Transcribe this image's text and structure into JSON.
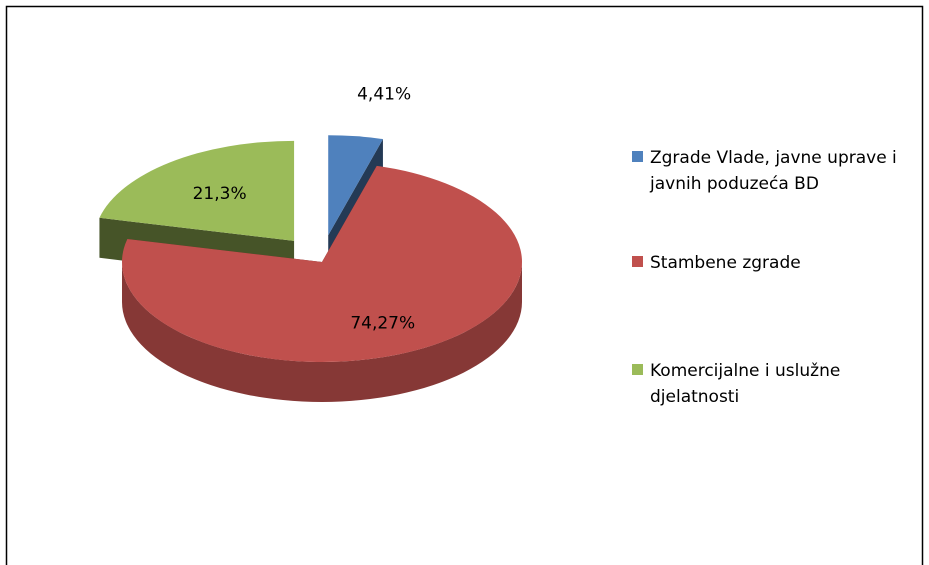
{
  "chart_data": {
    "type": "pie",
    "categories": [
      "Zgrade Vlade, javne uprave i javnih poduzeća BD",
      "Stambene zgrade",
      "Komercijalne i uslužne djelatnosti"
    ],
    "values": [
      4.41,
      74.27,
      21.3
    ],
    "value_labels": [
      "4,41%",
      "74,27%",
      "21,3%"
    ],
    "colors": [
      "#4f81bd",
      "#c0504d",
      "#9bbb59"
    ],
    "legend": "right"
  }
}
